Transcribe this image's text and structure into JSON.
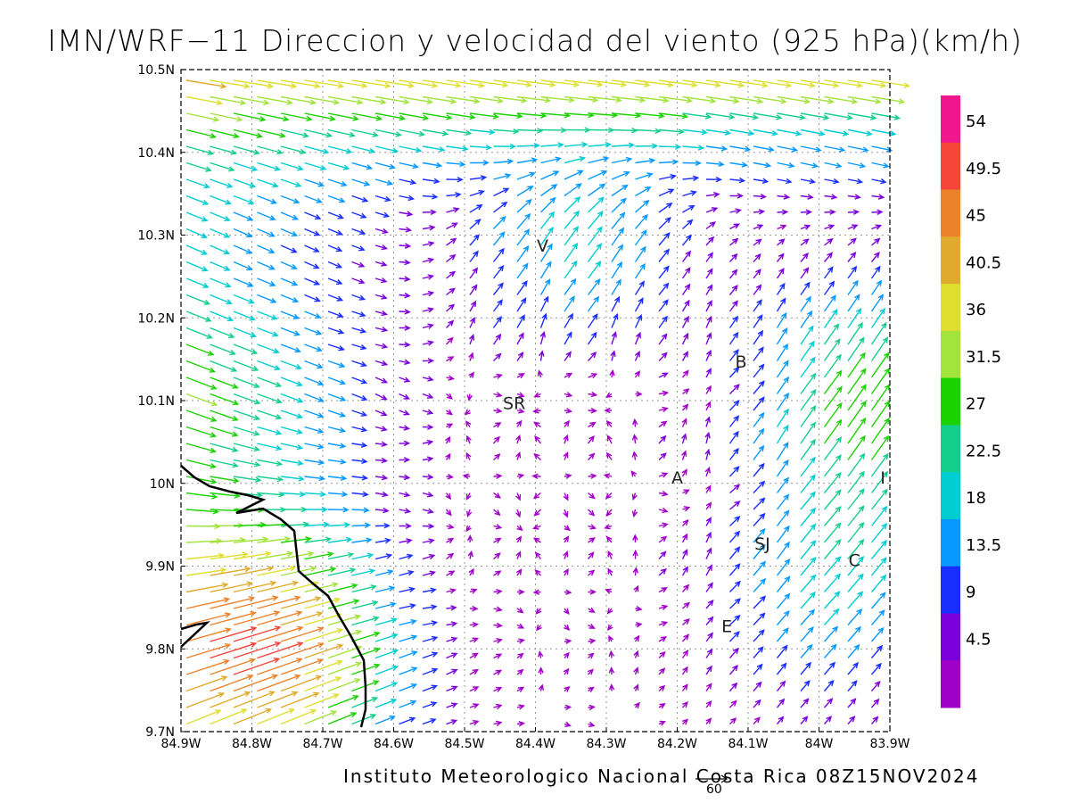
{
  "title": "IMN/WRF−11 Direccion y velocidad del viento (925 hPa)(km/h)",
  "footer": "Instituto Meteorologico Nacional Costa Rica 08Z15NOV2024",
  "scale_arrow_label": "60",
  "axes": {
    "x_ticks": [
      "84.9W",
      "84.8W",
      "84.7W",
      "84.6W",
      "84.5W",
      "84.4W",
      "84.3W",
      "84.2W",
      "84.1W",
      "84W",
      "83.9W"
    ],
    "y_ticks": [
      "10.5N",
      "10.4N",
      "10.3N",
      "10.2N",
      "10.1N",
      "10N",
      "9.9N",
      "9.8N",
      "9.7N"
    ],
    "lon_range": [
      -84.9,
      -83.9
    ],
    "lat_range": [
      9.7,
      10.5
    ],
    "grid": "dotted"
  },
  "colorbar": {
    "labels": [
      "54",
      "49.5",
      "45",
      "40.5",
      "36",
      "31.5",
      "27",
      "22.5",
      "18",
      "13.5",
      "9",
      "4.5"
    ],
    "colors": [
      "#f0168c",
      "#f5443a",
      "#ec822a",
      "#e0aa2c",
      "#dfdf30",
      "#a2e33c",
      "#19d200",
      "#14cf8c",
      "#00cdd0",
      "#0599ff",
      "#1a2dff",
      "#7b00dc",
      "#a000c8"
    ]
  },
  "places": [
    {
      "name": "V",
      "lon": -84.39,
      "lat": 10.28
    },
    {
      "name": "B",
      "lon": -84.11,
      "lat": 10.14
    },
    {
      "name": "SR",
      "lon": -84.43,
      "lat": 10.09
    },
    {
      "name": "A",
      "lon": -84.2,
      "lat": 10.0
    },
    {
      "name": "I",
      "lon": -83.91,
      "lat": 10.0
    },
    {
      "name": "SJ",
      "lon": -84.08,
      "lat": 9.92
    },
    {
      "name": "C",
      "lon": -83.95,
      "lat": 9.9
    },
    {
      "name": "E",
      "lon": -84.13,
      "lat": 9.82
    }
  ]
}
